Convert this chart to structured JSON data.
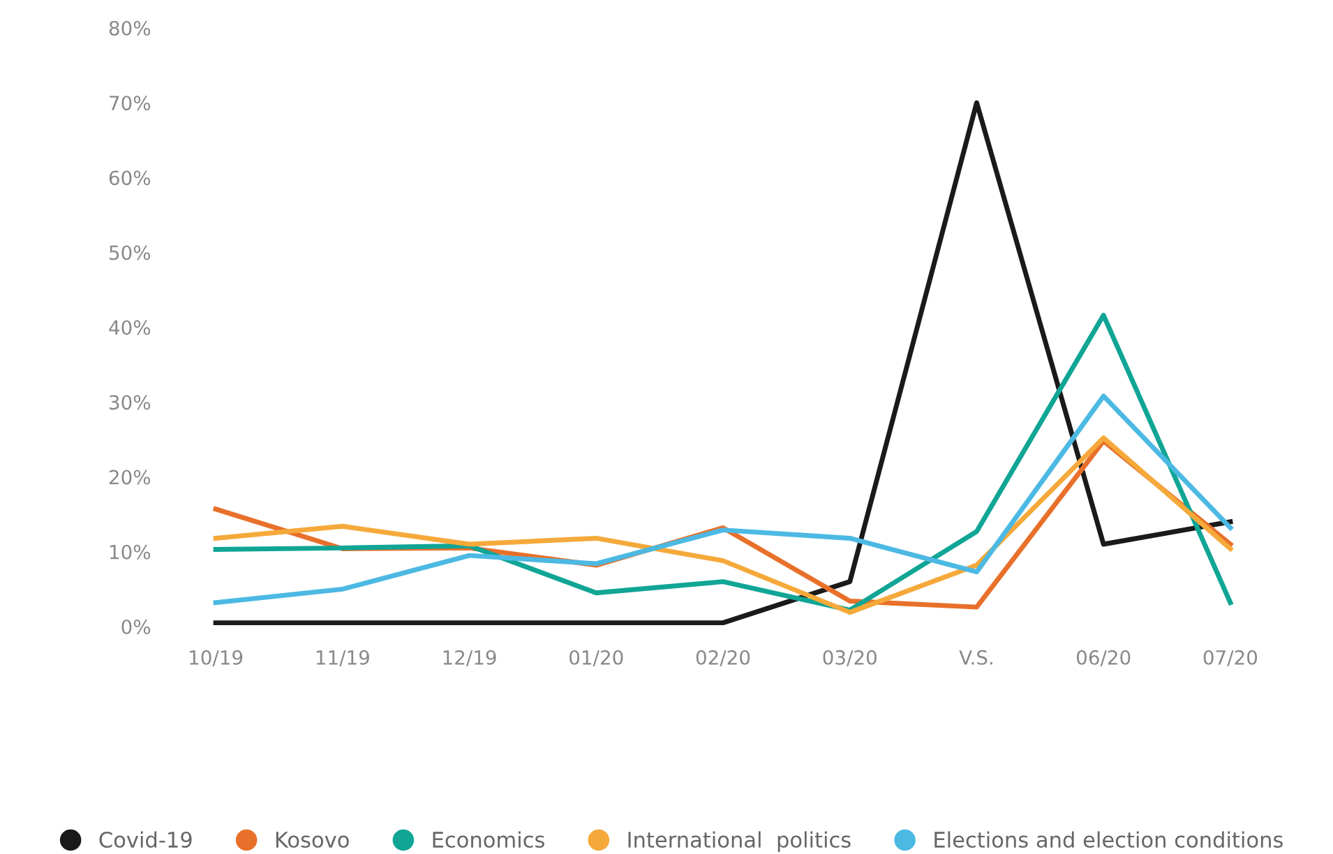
{
  "chart_data": {
    "type": "line",
    "categories": [
      "10/19",
      "11/19",
      "12/19",
      "01/20",
      "02/20",
      "03/20",
      "V.S.",
      "06/20",
      "07/20"
    ],
    "series": [
      {
        "name": "Covid-19",
        "color": "#1a1a1a",
        "values": [
          0.5,
          0.5,
          0.5,
          0.5,
          0.5,
          6,
          70,
          11,
          14
        ]
      },
      {
        "name": "Kosovo",
        "color": "#e8702a",
        "values": [
          15.7,
          10.4,
          10.5,
          8.2,
          13.2,
          3.4,
          2.6,
          24.8,
          11
        ]
      },
      {
        "name": "Economics",
        "color": "#10a595",
        "values": [
          10.3,
          10.5,
          10.8,
          4.5,
          6,
          2.2,
          12.7,
          41.6,
          3.2
        ]
      },
      {
        "name": "International  politics",
        "color": "#f5a93a",
        "values": [
          11.8,
          13.4,
          11,
          11.8,
          8.8,
          1.9,
          8.2,
          25.2,
          10.4
        ]
      },
      {
        "name": "Elections and election conditions",
        "color": "#4cb9e3",
        "values": [
          3.2,
          5,
          9.5,
          8.4,
          12.9,
          11.8,
          7.3,
          30.8,
          13.2
        ]
      }
    ],
    "ylim": [
      0,
      80
    ],
    "yticks": [
      {
        "value": 0,
        "label": "0%"
      },
      {
        "value": 10,
        "label": "10%"
      },
      {
        "value": 20,
        "label": "20%"
      },
      {
        "value": 30,
        "label": "30%"
      },
      {
        "value": 40,
        "label": "40%"
      },
      {
        "value": 50,
        "label": "50%"
      },
      {
        "value": 60,
        "label": "60%"
      },
      {
        "value": 70,
        "label": "70%"
      },
      {
        "value": 80,
        "label": "80%"
      }
    ],
    "grid": false,
    "legend": "bottom",
    "marker": "none",
    "line_style": "solid"
  }
}
